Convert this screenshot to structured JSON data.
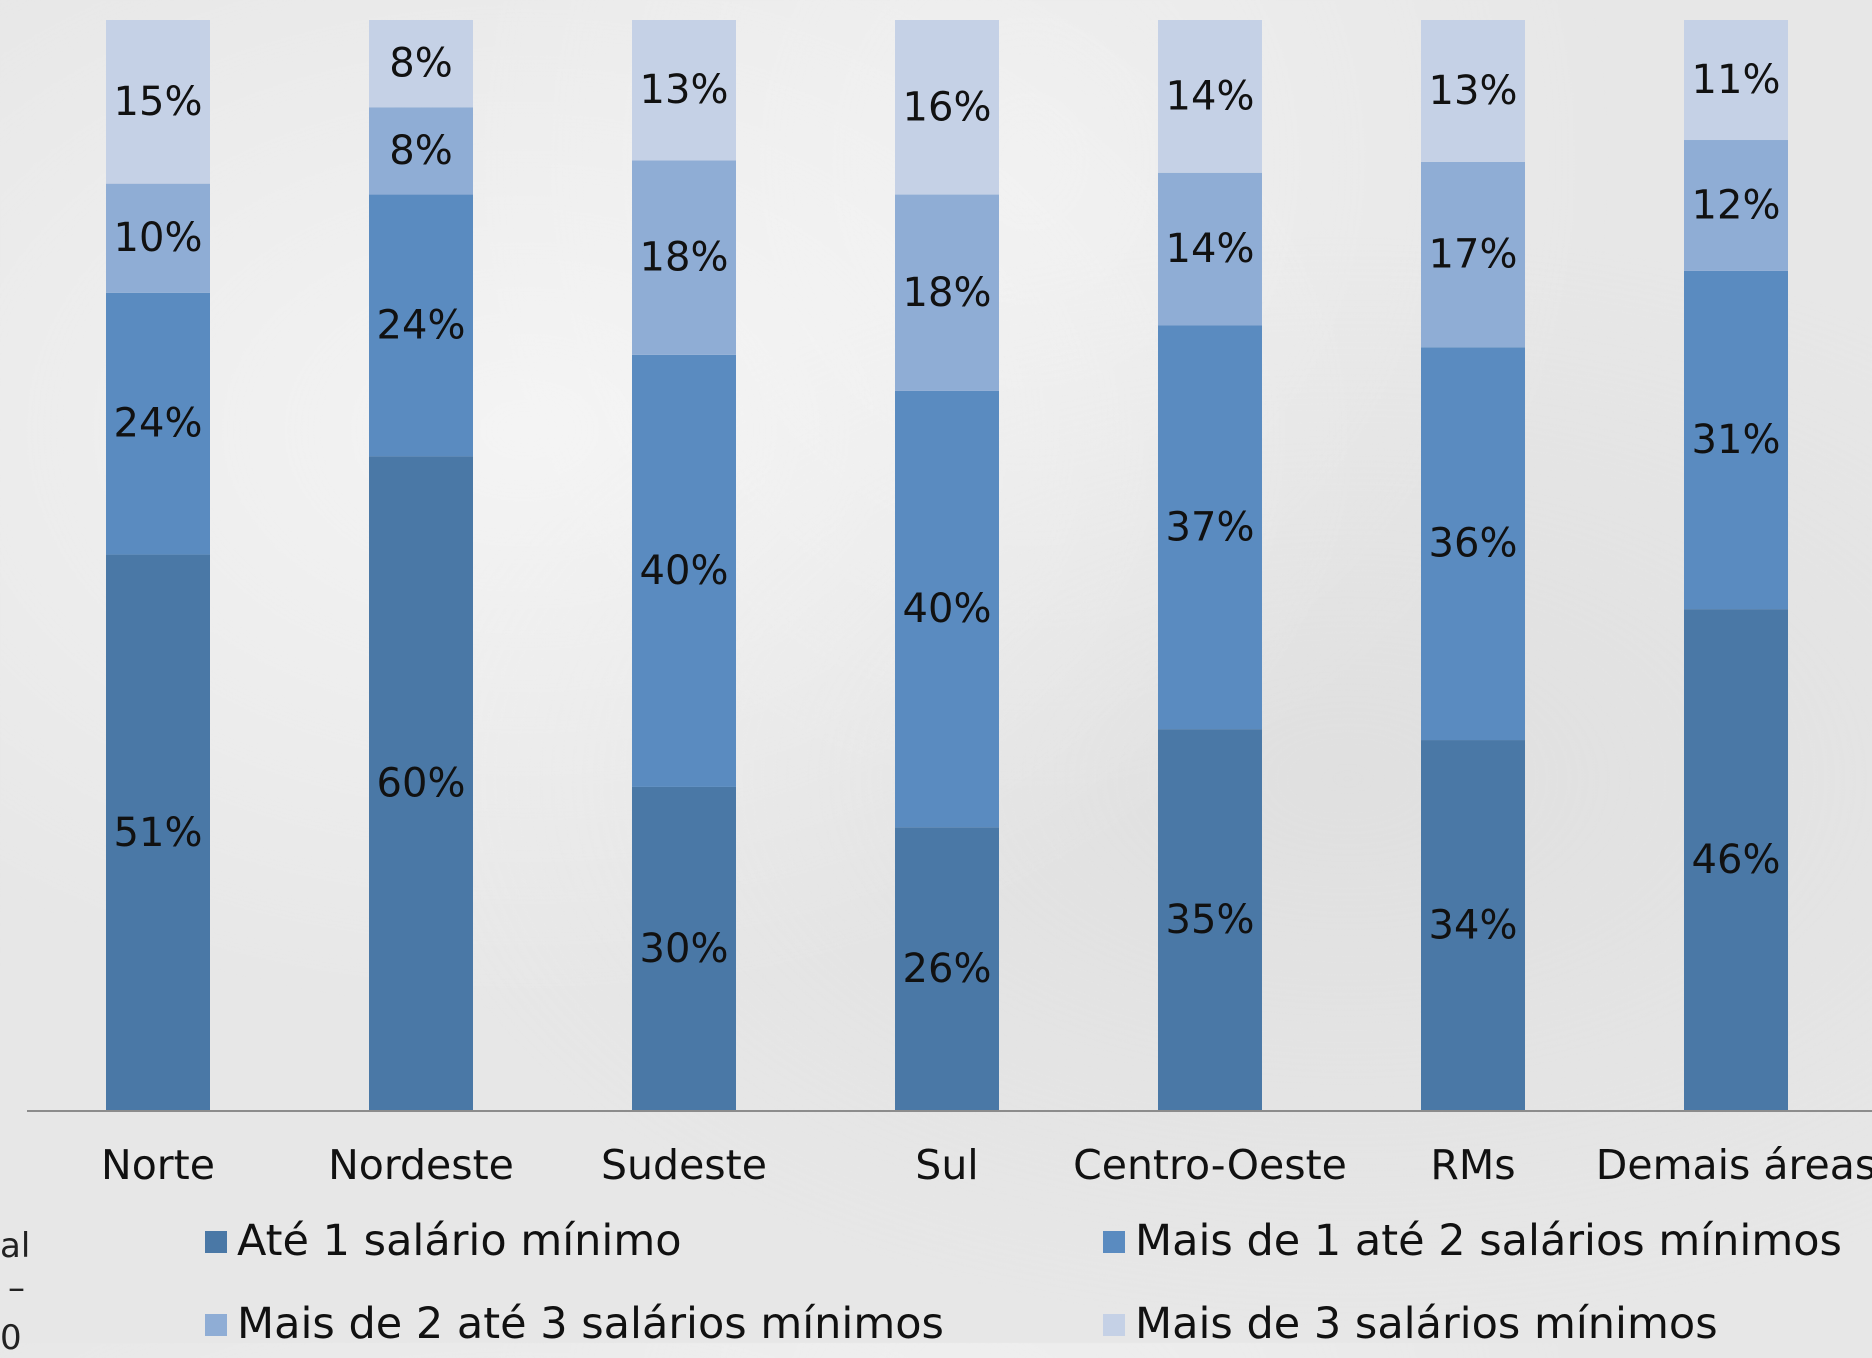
{
  "chart_data": {
    "type": "bar",
    "stacked": true,
    "percent_stacked": true,
    "categories": [
      "Norte",
      "Nordeste",
      "Sudeste",
      "Sul",
      "Centro-Oeste",
      "RMs",
      "Demais áreas"
    ],
    "series": [
      {
        "name": "Até 1 salário mínimo",
        "color": "#4A78A6",
        "values": [
          51,
          60,
          30,
          26,
          35,
          34,
          46
        ],
        "labels": [
          "51%",
          "60%",
          "30%",
          "26%",
          "35%",
          "34%",
          "46%"
        ]
      },
      {
        "name": "Mais de 1 até 2 salários mínimos",
        "color": "#5A8BC0",
        "values": [
          24,
          24,
          40,
          40,
          37,
          36,
          31
        ],
        "labels": [
          "24%",
          "24%",
          "40%",
          "40%",
          "37%",
          "36%",
          "31%"
        ]
      },
      {
        "name": "Mais de 2 até 3 salários mínimos",
        "color": "#8FADD5",
        "values": [
          10,
          8,
          18,
          18,
          14,
          17,
          12
        ],
        "labels": [
          "10%",
          "8%",
          "18%",
          "18%",
          "14%",
          "17%",
          "12%"
        ]
      },
      {
        "name": "Mais de 3 salários mínimos",
        "color": "#C5D1E6",
        "values": [
          15,
          8,
          13,
          16,
          14,
          13,
          11
        ],
        "labels": [
          "15%",
          "8%",
          "13%",
          "16%",
          "14%",
          "13%",
          "11%"
        ]
      }
    ],
    "ylim": [
      0,
      100
    ],
    "legend": "bottom",
    "grid": false
  },
  "clipped_text": [
    "al",
    "–",
    "0"
  ]
}
